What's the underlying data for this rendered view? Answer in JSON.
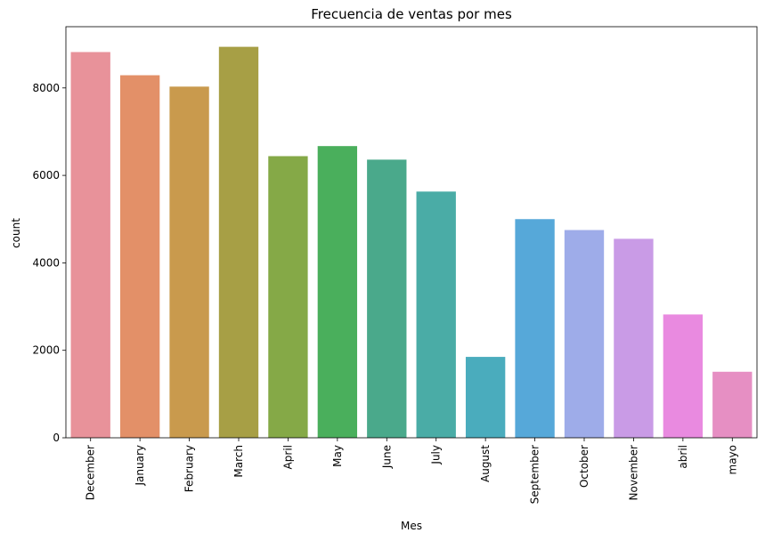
{
  "chart_data": {
    "type": "bar",
    "title": "Frecuencia de ventas por mes",
    "xlabel": "Mes",
    "ylabel": "count",
    "ylim": [
      0,
      9400
    ],
    "yticks": [
      0,
      2000,
      4000,
      6000,
      8000
    ],
    "categories": [
      "December",
      "January",
      "February",
      "March",
      "April",
      "May",
      "June",
      "July",
      "August",
      "September",
      "October",
      "November",
      "abril",
      "mayo"
    ],
    "values": [
      8820,
      8290,
      8030,
      8940,
      6440,
      6670,
      6360,
      5630,
      1850,
      5000,
      4750,
      4550,
      2820,
      1510
    ],
    "colors": [
      "#e8929a",
      "#e39068",
      "#c99a4d",
      "#a79f45",
      "#85a947",
      "#4aaf5c",
      "#4aa98b",
      "#4aaca6",
      "#4aacbd",
      "#56a8d9",
      "#9eace9",
      "#c99be6",
      "#e98ae0",
      "#e68fc3"
    ],
    "grid": false,
    "legend": "none"
  }
}
